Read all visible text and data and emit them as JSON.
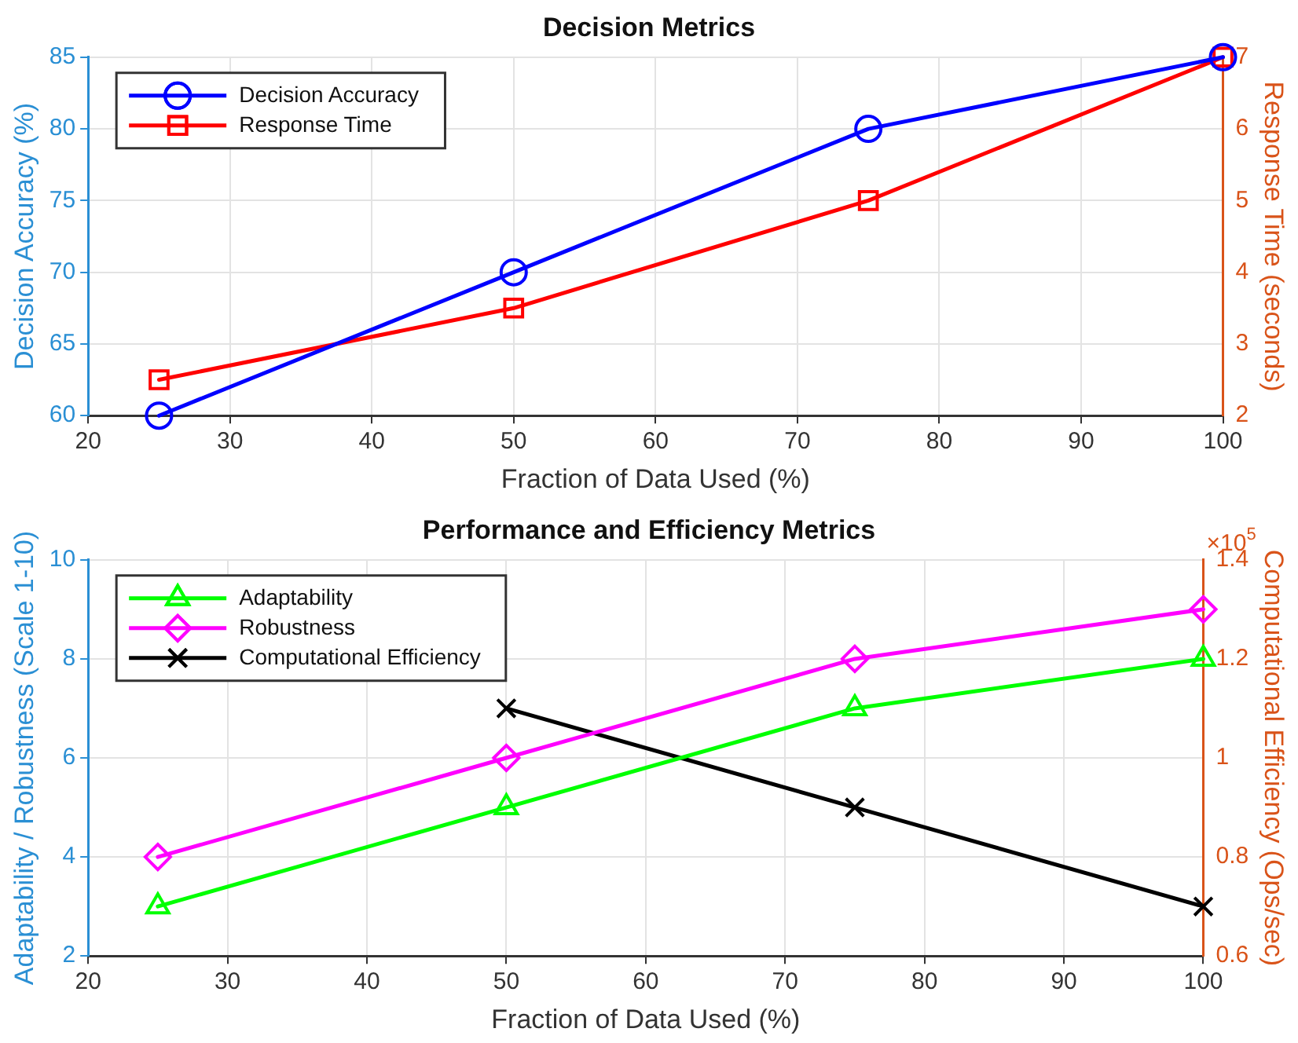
{
  "chart_data": [
    {
      "type": "line",
      "title": "Decision Metrics",
      "xlabel": "Fraction of Data Used (%)",
      "ylabel": "Decision Accuracy (%)",
      "y2label": "Response Time (seconds)",
      "x": [
        25,
        50,
        75,
        100
      ],
      "series": [
        {
          "name": "Decision Accuracy",
          "color": "#0000ff",
          "values": [
            60,
            70,
            80,
            85
          ],
          "marker": "circle"
        },
        {
          "name": "Response Time",
          "color": "#ff0000",
          "values": [
            2.5,
            3.5,
            5,
            7
          ],
          "marker": "square",
          "axis": "y2"
        }
      ],
      "xlim": [
        20,
        100
      ],
      "xticks": [
        20,
        30,
        40,
        50,
        60,
        70,
        80,
        90,
        100
      ],
      "ylim": [
        60,
        85
      ],
      "yticks": [
        60,
        65,
        70,
        75,
        80,
        85
      ],
      "y2lim": [
        2,
        7
      ],
      "y2ticks": [
        2,
        3,
        4,
        5,
        6,
        7
      ],
      "grid": true,
      "legend": "top left",
      "line_style": "solid"
    },
    {
      "type": "line",
      "title": "Performance and Efficiency Metrics",
      "xlabel": "Fraction of Data Used (%)",
      "ylabel": "Adaptability / Robustness (Scale 1-10)",
      "y2label": "Computational Efficiency (Ops/sec)",
      "x": [
        25,
        50,
        75,
        100
      ],
      "series": [
        {
          "name": "Adaptability",
          "color": "#00ff00",
          "values": [
            3,
            5,
            7,
            8
          ],
          "marker": "triangle"
        },
        {
          "name": "Robustness",
          "color": "#ff00ff",
          "values": [
            4,
            6,
            8,
            9
          ],
          "marker": "diamond"
        },
        {
          "name": "Computational Efficiency",
          "color": "#000000",
          "values": [
            null,
            1.1,
            0.9,
            0.7
          ],
          "marker": "cross",
          "axis": "y2"
        }
      ],
      "xlim": [
        20,
        100
      ],
      "xticks": [
        20,
        30,
        40,
        50,
        60,
        70,
        80,
        90,
        100
      ],
      "ylim": [
        2,
        10
      ],
      "yticks": [
        2,
        4,
        6,
        8,
        10
      ],
      "y2lim": [
        0.6,
        1.4
      ],
      "y2ticks": [
        0.6,
        0.8,
        1,
        1.2,
        1.4
      ],
      "annotations": [
        "×10$^{5}$"
      ],
      "grid": true,
      "legend": "top left",
      "line_style": "solid"
    }
  ]
}
